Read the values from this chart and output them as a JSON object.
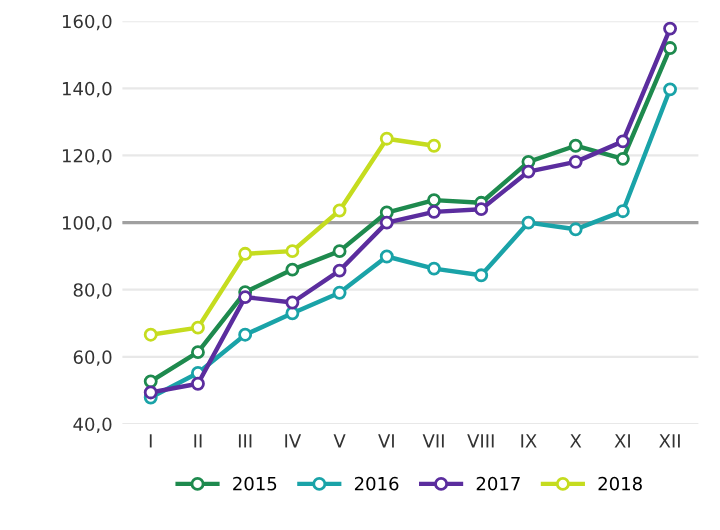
{
  "chart_data": {
    "type": "line",
    "categories": [
      "I",
      "II",
      "III",
      "IV",
      "V",
      "VI",
      "VII",
      "VIII",
      "IX",
      "X",
      "XI",
      "XII"
    ],
    "series": [
      {
        "name": "2015",
        "color": "#1e8a4e",
        "values": [
          52.7,
          61.4,
          79.3,
          86,
          91.5,
          103,
          106.7,
          105.9,
          118.1,
          122.9,
          119,
          152
        ]
      },
      {
        "name": "2016",
        "color": "#1aa3a8",
        "values": [
          47.9,
          55.2,
          66.6,
          73,
          79.1,
          89.9,
          86.3,
          84.3,
          100,
          98,
          103.4,
          139.7
        ]
      },
      {
        "name": "2017",
        "color": "#5b2d9e",
        "values": [
          49.4,
          52,
          77.8,
          76.2,
          85.7,
          100,
          103.2,
          104,
          115.2,
          118.1,
          124.2,
          157.8
        ]
      },
      {
        "name": "2018",
        "color": "#c5dc1f",
        "values": [
          66.6,
          68.7,
          90.7,
          91.5,
          103.6,
          125,
          122.9,
          null,
          null,
          null,
          null,
          null
        ]
      }
    ],
    "ylim": [
      40,
      160
    ],
    "yticks": [
      {
        "value": 40,
        "label": "40,0"
      },
      {
        "value": 60,
        "label": "60,0"
      },
      {
        "value": 80,
        "label": "80,0"
      },
      {
        "value": 100,
        "label": "100,0"
      },
      {
        "value": 120,
        "label": "120,0"
      },
      {
        "value": 140,
        "label": "140,0"
      },
      {
        "value": 160,
        "label": "160,0"
      }
    ],
    "ref_lines": [
      {
        "axis": "y",
        "value": 100,
        "color": "#a0a0a0"
      }
    ],
    "grid": "y",
    "legend": "bottom",
    "marker": "circle",
    "line_style": "solid"
  }
}
